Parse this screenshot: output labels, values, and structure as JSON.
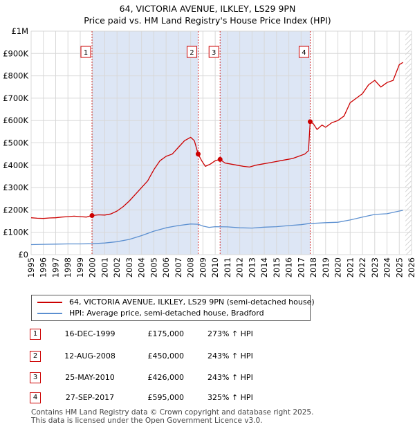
{
  "title_line1": "64, VICTORIA AVENUE, ILKLEY, LS29 9PN",
  "title_line2": "Price paid vs. HM Land Registry's House Price Index (HPI)",
  "colors": {
    "property": "#cc0000",
    "hpi": "#5b8fd0",
    "shade": "#dde6f5",
    "grid": "#d8d8d8",
    "marker_border": "#cc0000"
  },
  "chart_data": {
    "type": "line",
    "title": "Price paid vs. HM Land Registry's House Price Index (HPI)",
    "xlim": [
      1995,
      2026
    ],
    "ylim": [
      0,
      1000000
    ],
    "ytick_values": [
      0,
      100000,
      200000,
      300000,
      400000,
      500000,
      600000,
      700000,
      800000,
      900000,
      1000000
    ],
    "ytick_labels": [
      "£0",
      "£100K",
      "£200K",
      "£300K",
      "£400K",
      "£500K",
      "£600K",
      "£700K",
      "£800K",
      "£900K",
      "£1M"
    ],
    "xtick_values": [
      1995,
      1996,
      1997,
      1998,
      1999,
      2000,
      2001,
      2002,
      2003,
      2004,
      2005,
      2006,
      2007,
      2008,
      2009,
      2010,
      2011,
      2012,
      2013,
      2014,
      2015,
      2016,
      2017,
      2018,
      2019,
      2020,
      2021,
      2022,
      2023,
      2024,
      2025,
      2026
    ],
    "xtick_labels": [
      "1995",
      "1996",
      "1997",
      "1998",
      "1999",
      "2000",
      "2001",
      "2002",
      "2003",
      "2004",
      "2005",
      "2006",
      "2007",
      "2008",
      "2009",
      "2010",
      "2011",
      "2012",
      "2013",
      "2014",
      "2015",
      "2016",
      "2017",
      "2018",
      "2019",
      "2020",
      "2021",
      "2022",
      "2023",
      "2024",
      "2025",
      "2026"
    ],
    "shaded_ranges": [
      [
        1999.96,
        2008.61
      ],
      [
        2010.4,
        2017.74
      ]
    ],
    "hatched_from": 2025.5,
    "series": [
      {
        "name": "64, VICTORIA AVENUE, ILKLEY, LS29 9PN (semi-detached house)",
        "color": "#cc0000",
        "x": [
          1995.0,
          1995.5,
          1996.0,
          1996.5,
          1997.0,
          1997.5,
          1998.0,
          1998.5,
          1999.0,
          1999.5,
          1999.96,
          2000.5,
          2001.0,
          2001.5,
          2002.0,
          2002.5,
          2003.0,
          2003.5,
          2004.0,
          2004.5,
          2005.0,
          2005.5,
          2006.0,
          2006.5,
          2007.0,
          2007.5,
          2008.0,
          2008.3,
          2008.61,
          2008.9,
          2009.2,
          2009.6,
          2010.0,
          2010.4,
          2010.8,
          2011.3,
          2011.8,
          2012.3,
          2012.8,
          2013.3,
          2013.8,
          2014.3,
          2014.8,
          2015.3,
          2015.8,
          2016.3,
          2016.8,
          2017.3,
          2017.6,
          2017.74,
          2018.0,
          2018.3,
          2018.7,
          2019.0,
          2019.5,
          2020.0,
          2020.5,
          2021.0,
          2021.5,
          2022.0,
          2022.5,
          2023.0,
          2023.5,
          2024.0,
          2024.5,
          2025.0,
          2025.3
        ],
        "y": [
          165000,
          163000,
          162000,
          164000,
          165000,
          168000,
          170000,
          172000,
          170000,
          168000,
          175000,
          178000,
          177000,
          182000,
          195000,
          215000,
          240000,
          270000,
          300000,
          330000,
          380000,
          420000,
          440000,
          450000,
          480000,
          510000,
          525000,
          510000,
          450000,
          420000,
          395000,
          405000,
          420000,
          426000,
          410000,
          405000,
          400000,
          395000,
          392000,
          400000,
          405000,
          410000,
          415000,
          420000,
          425000,
          430000,
          440000,
          450000,
          465000,
          595000,
          585000,
          560000,
          580000,
          570000,
          590000,
          600000,
          620000,
          680000,
          700000,
          720000,
          760000,
          780000,
          750000,
          770000,
          780000,
          850000,
          860000
        ]
      },
      {
        "name": "HPI: Average price, semi-detached house, Bradford",
        "color": "#5b8fd0",
        "x": [
          1995.0,
          1996.0,
          1997.0,
          1998.0,
          1999.0,
          2000.0,
          2001.0,
          2002.0,
          2003.0,
          2004.0,
          2005.0,
          2006.0,
          2007.0,
          2008.0,
          2008.6,
          2009.0,
          2009.5,
          2010.0,
          2011.0,
          2012.0,
          2013.0,
          2014.0,
          2015.0,
          2016.0,
          2017.0,
          2017.74,
          2018.0,
          2019.0,
          2020.0,
          2021.0,
          2022.0,
          2023.0,
          2024.0,
          2025.0,
          2025.3
        ],
        "y": [
          45000,
          46000,
          47000,
          48000,
          48000,
          49000,
          52000,
          58000,
          68000,
          85000,
          105000,
          120000,
          130000,
          137000,
          136000,
          128000,
          122000,
          125000,
          124000,
          120000,
          119000,
          123000,
          125000,
          130000,
          134000,
          140000,
          140000,
          143000,
          145000,
          155000,
          168000,
          180000,
          183000,
          195000,
          198000
        ]
      }
    ],
    "sales": [
      {
        "label": "1",
        "x": 1999.96,
        "y": 175000
      },
      {
        "label": "2",
        "x": 2008.61,
        "y": 450000
      },
      {
        "label": "3",
        "x": 2010.4,
        "y": 426000
      },
      {
        "label": "4",
        "x": 2017.74,
        "y": 595000
      }
    ]
  },
  "legend": [
    {
      "label": "64, VICTORIA AVENUE, ILKLEY, LS29 9PN (semi-detached house)",
      "color": "#cc0000"
    },
    {
      "label": "HPI: Average price, semi-detached house, Bradford",
      "color": "#5b8fd0"
    }
  ],
  "transactions": [
    {
      "num": "1",
      "date": "16-DEC-1999",
      "price": "£175,000",
      "hpi": "273% ↑ HPI"
    },
    {
      "num": "2",
      "date": "12-AUG-2008",
      "price": "£450,000",
      "hpi": "243% ↑ HPI"
    },
    {
      "num": "3",
      "date": "25-MAY-2010",
      "price": "£426,000",
      "hpi": "243% ↑ HPI"
    },
    {
      "num": "4",
      "date": "27-SEP-2017",
      "price": "£595,000",
      "hpi": "325% ↑ HPI"
    }
  ],
  "footer_line1": "Contains HM Land Registry data © Crown copyright and database right 2025.",
  "footer_line2": "This data is licensed under the Open Government Licence v3.0."
}
